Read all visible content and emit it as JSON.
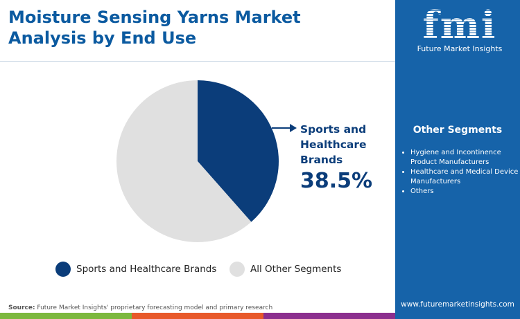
{
  "title": "Moisture Sensing Yarns Market Analysis by End Use",
  "chart_data": {
    "type": "pie",
    "title": "Moisture Sensing Yarns Market Analysis by End Use",
    "slices": [
      {
        "name": "Sports and Healthcare Brands",
        "value": 38.5,
        "color": "#0b3d7a"
      },
      {
        "name": "All Other Segments",
        "value": 61.5,
        "color": "#e0e0e0"
      }
    ],
    "callout": {
      "label": "Sports and Healthcare Brands",
      "value_label": "38.5%"
    },
    "legend_position": "bottom"
  },
  "callout_lines": [
    "Sports and",
    "Healthcare",
    "Brands"
  ],
  "panel": {
    "logo_text": "fmi",
    "logo_sub": "Future Market Insights",
    "segments_title": "Other Segments",
    "segments": [
      "Hygiene and Incontinence Product Manufacturers",
      "Healthcare and Medical Device Manufacturers",
      "Others"
    ],
    "url": "www.futuremarketinsights.com"
  },
  "source_label": "Source:",
  "source_text": " Future Market Insights' proprietary forecasting model and primary research",
  "bar_colors": [
    "#7cb83e",
    "#e8592a",
    "#8b2f8e"
  ]
}
